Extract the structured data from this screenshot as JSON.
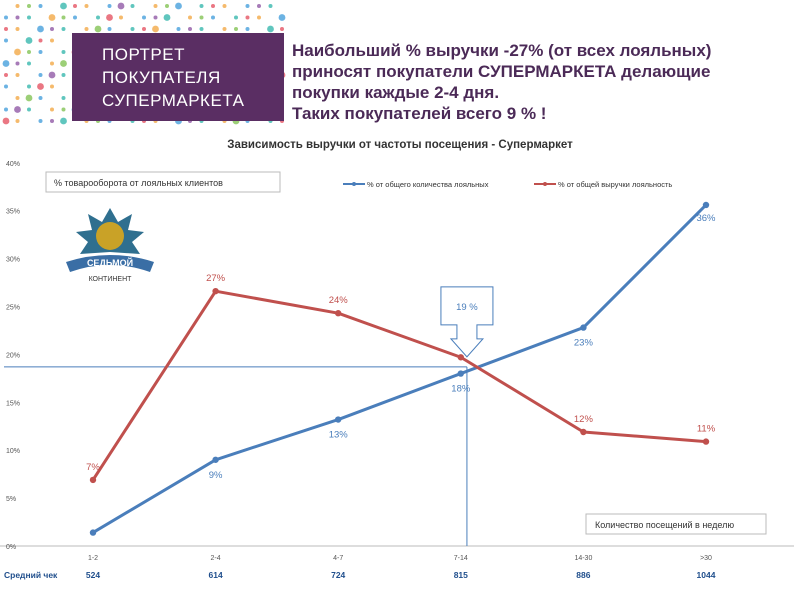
{
  "header": {
    "title_lines": [
      "ПОРТРЕТ",
      "ПОКУПАТЕЛЯ",
      "СУПЕРМАРКЕТА"
    ],
    "headline_lines": [
      "Наибольший % выручки -27% (от всех лояльных)",
      "приносят покупатели СУПЕРМАРКЕТА делающие",
      "покупки каждые 2-4 дня.",
      "Таких покупателей всего 9 % !"
    ]
  },
  "logo": {
    "top_text": "СЕДЬМОЙ",
    "bottom_text": "КОНТИНЕНТ"
  },
  "colors": {
    "blue": "#4a7ebb",
    "red": "#c0504d",
    "purple": "#5a2e63"
  },
  "chart_data": {
    "type": "line",
    "title": "Зависимость выручки от частоты посещения - Супермаркет",
    "ylabel": "% товарооборота от лояльных клиентов",
    "xlabel": "Количество посещений в неделю",
    "categories": [
      "1-2",
      "2-4",
      "4-7",
      "7-14",
      "14-30",
      ">30"
    ],
    "ylim": [
      0,
      40
    ],
    "yticks": [
      "0%",
      "5%",
      "10%",
      "15%",
      "20%",
      "25%",
      "30%",
      "35%",
      "40%"
    ],
    "series": [
      {
        "name": "% от общего количества лояльных",
        "values": [
          1.4,
          9.0,
          13.2,
          18.0,
          22.8,
          35.6
        ],
        "labels": [
          "",
          "9%",
          "13%",
          "18%",
          "23%",
          "36%"
        ]
      },
      {
        "name": "% от общей выручки лояльность",
        "values": [
          6.9,
          26.6,
          24.3,
          19.7,
          11.9,
          10.9
        ],
        "labels": [
          "7%",
          "27%",
          "24%",
          "",
          "12%",
          "11%"
        ]
      }
    ],
    "intersection": {
      "label": "19 %",
      "value": 18.7,
      "x_position": 3.05
    },
    "average_check": {
      "label": "Средний чек",
      "values": [
        "524",
        "614",
        "724",
        "815",
        "886",
        "1044"
      ]
    },
    "legend_placement": "top-right",
    "grid": false
  }
}
